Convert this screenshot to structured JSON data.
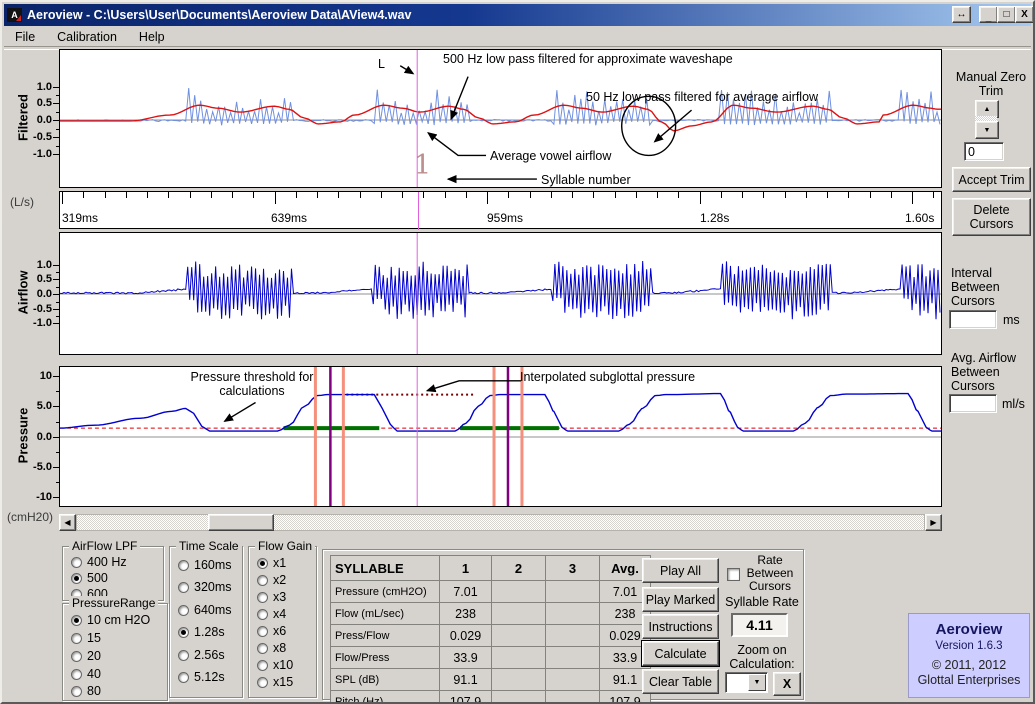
{
  "window": {
    "title": "Aeroview - C:\\Users\\User\\Documents\\Aeroview Data\\AView4.wav"
  },
  "icons": {
    "app_mark": "A",
    "resize": "↔",
    "minimize": "_",
    "maximize": "□",
    "close": "X",
    "scroll_left": "◀",
    "scroll_right": "▶",
    "spin_up": "▲",
    "spin_down": "▼",
    "dropdown": "▼"
  },
  "menu": [
    "File",
    "Calibration",
    "Help"
  ],
  "charts": {
    "filtered": {
      "name": "Filtered",
      "unit": "(L/s)",
      "ticks": [
        "1.0",
        "0.5",
        "0.0",
        "-0.5",
        "-1.0"
      ]
    },
    "airflow": {
      "name": "Airflow",
      "ticks": [
        "1.0",
        "0.5",
        "0.0",
        "-0.5",
        "-1.0"
      ]
    },
    "pressure": {
      "name": "Pressure",
      "unit": "(cmH20)",
      "ticks": [
        "10",
        "5.0",
        "0.0",
        "-5.0",
        "-10"
      ]
    },
    "time_labels": [
      "319ms",
      "639ms",
      "959ms",
      "1.28s",
      "1.60s"
    ],
    "annotations": {
      "cursor": "L",
      "filtered_500": "500 Hz low pass filtered for approximate waveshape",
      "filtered_50": "50 Hz low pass filtered for average airflow",
      "avg_vowel": "Average vowel airflow",
      "syllable_marker": "1",
      "syllable_label": "Syllable number",
      "threshold": "Pressure threshold for\ncalculations",
      "interpolated": "Interpolated subglottal pressure"
    },
    "bursts": [
      [
        128,
        233
      ],
      [
        313,
        408
      ],
      [
        493,
        593
      ],
      [
        663,
        773
      ],
      [
        843,
        883
      ]
    ]
  },
  "right_panel": {
    "manual_zero_trim": "Manual  Zero\nTrim",
    "trim_value": "0",
    "accept_trim": "Accept Trim",
    "delete_cursors": "Delete\nCursors",
    "interval": "Interval\nBetween\nCursors",
    "interval_unit": "ms",
    "interval_value": "",
    "avg_airflow": "Avg. Airflow\nBetween\nCursors",
    "avg_airflow_unit": "ml/s",
    "avg_airflow_value": ""
  },
  "groups": {
    "airflow_lpf": {
      "title": "AirFlow LPF",
      "options": [
        "400 Hz",
        "500",
        "600"
      ],
      "selected": 1
    },
    "pressure_range": {
      "title": "PressureRange",
      "options": [
        "10 cm H2O",
        "15",
        "20",
        "40",
        "80"
      ],
      "selected": 0
    },
    "time_scale": {
      "title": "Time Scale",
      "options": [
        "160ms",
        "320ms",
        "640ms",
        "1.28s",
        "2.56s",
        "5.12s"
      ],
      "selected": 3
    },
    "flow_gain": {
      "title": "Flow Gain",
      "options": [
        "x1",
        "x2",
        "x3",
        "x4",
        "x6",
        "x8",
        "x10",
        "x15"
      ],
      "selected": 0
    }
  },
  "table": {
    "header": [
      "SYLLABLE",
      "1",
      "2",
      "3",
      "Avg."
    ],
    "rows": [
      {
        "label": "Pressure (cmH2O)",
        "values": [
          "7.01",
          "",
          "",
          "7.01"
        ]
      },
      {
        "label": "Flow (mL/sec)",
        "values": [
          "238",
          "",
          "",
          "238"
        ]
      },
      {
        "label": "Press/Flow",
        "values": [
          "0.029",
          "",
          "",
          "0.029"
        ]
      },
      {
        "label": "Flow/Press",
        "values": [
          "33.9",
          "",
          "",
          "33.9"
        ]
      },
      {
        "label": "SPL (dB)",
        "values": [
          "91.1",
          "",
          "",
          "91.1"
        ]
      },
      {
        "label": "Pitch (Hz)",
        "values": [
          "107.9",
          "",
          "",
          "107.9"
        ]
      }
    ]
  },
  "actions": [
    "Play All",
    "Play Marked",
    "Instructions",
    "Calculate",
    "Clear Table"
  ],
  "rate": {
    "checkbox_label": "Rate\nBetween\nCursors",
    "syllable_rate_label": "Syllable Rate",
    "syllable_rate_value": "4.11",
    "zoom_label": "Zoom on\nCalculation:",
    "zoom_value": "",
    "close_button": "X"
  },
  "branding": {
    "name": "Aeroview",
    "version": "Version 1.6.3",
    "copyright": "© 2011, 2012",
    "company": "Glottal Enterprises"
  },
  "colors": {
    "filtered_wave": "#7090e0",
    "smoothed_wave": "#dd1111",
    "airflow_wave": "#0000cc",
    "pressure_wave": "#0000d0",
    "threshold": "#dd0000",
    "interpolated": "#7a0000",
    "green_marker": "#007000",
    "cursor_magenta": "#e060e0",
    "cursor_salmon": "#f4907c",
    "cursor_purple": "#800080",
    "syllable_marker": "#bc8f8f",
    "branding_bg": "#cdcdff",
    "title_bar": "#0a246a"
  }
}
